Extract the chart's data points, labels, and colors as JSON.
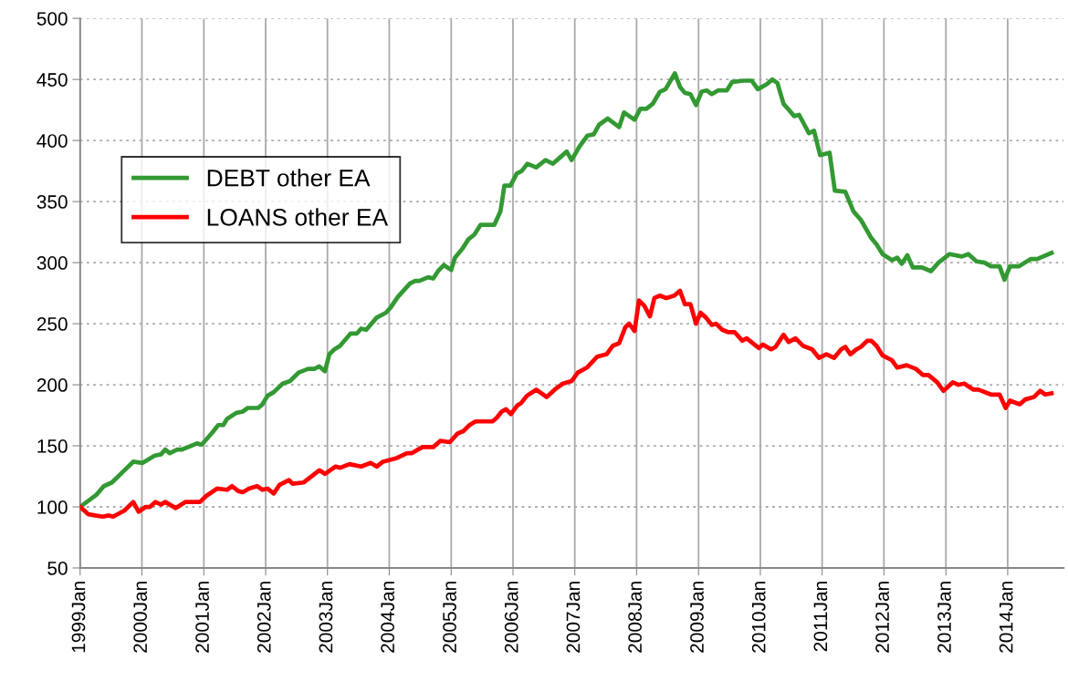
{
  "chart_data": {
    "type": "line",
    "xlim": [
      "1999-01-01",
      "2014-11-28"
    ],
    "xticks": [
      {
        "value": "1999-01",
        "label": "1999Jan"
      },
      {
        "value": "2000-01",
        "label": "2000Jan"
      },
      {
        "value": "2001-01",
        "label": "2001Jan"
      },
      {
        "value": "2002-01",
        "label": "2002Jan"
      },
      {
        "value": "2003-01",
        "label": "2003Jan"
      },
      {
        "value": "2004-01",
        "label": "2004Jan"
      },
      {
        "value": "2005-01",
        "label": "2005Jan"
      },
      {
        "value": "2006-01",
        "label": "2006Jan"
      },
      {
        "value": "2007-01",
        "label": "2007Jan"
      },
      {
        "value": "2008-01",
        "label": "2008Jan"
      },
      {
        "value": "2009-01",
        "label": "2009Jan"
      },
      {
        "value": "2010-01",
        "label": "2010Jan"
      },
      {
        "value": "2011-01",
        "label": "2011Jan"
      },
      {
        "value": "2012-01",
        "label": "2012Jan"
      },
      {
        "value": "2013-01",
        "label": "2013Jan"
      },
      {
        "value": "2014-01",
        "label": "2014Jan"
      }
    ],
    "ylim": [
      50,
      500
    ],
    "yticks": [
      50,
      100,
      150,
      200,
      250,
      300,
      350,
      400,
      450,
      500
    ],
    "grid": true,
    "legend": "top left",
    "marker": "none",
    "line_style": "solid",
    "series": [
      {
        "name": "DEBT other EA",
        "color": "#339933",
        "x": [
          "1999-01-01",
          "1999-04-08",
          "1999-05-21",
          "1999-07-08",
          "1999-09-20",
          "1999-11-11",
          "2000-01-05",
          "2000-03-17",
          "2000-04-23",
          "2000-05-18",
          "2000-06-13",
          "2000-07-28",
          "2000-08-25",
          "2000-10-01",
          "2000-11-21",
          "2000-12-20",
          "2001-02-21",
          "2001-03-27",
          "2001-04-26",
          "2001-05-18",
          "2001-07-12",
          "2001-08-18",
          "2001-09-17",
          "2001-11-18",
          "2001-12-13",
          "2002-01-12",
          "2002-02-18",
          "2002-04-12",
          "2002-05-25",
          "2002-07-15",
          "2002-09-09",
          "2002-10-15",
          "2002-11-14",
          "2002-12-17",
          "2003-01-12",
          "2003-02-11",
          "2003-03-17",
          "2003-05-18",
          "2003-06-24",
          "2003-07-19",
          "2003-08-18",
          "2003-10-19",
          "2003-12-13",
          "2004-01-08",
          "2004-02-21",
          "2004-05-03",
          "2004-06-02",
          "2004-06-27",
          "2004-08-18",
          "2004-09-17",
          "2004-10-15",
          "2004-11-18",
          "2005-01-01",
          "2005-01-23",
          "2005-03-06",
          "2005-04-12",
          "2005-05-18",
          "2005-06-24",
          "2005-09-13",
          "2005-10-19",
          "2005-11-11",
          "2005-12-17",
          "2006-01-23",
          "2006-02-21",
          "2006-03-27",
          "2006-05-18",
          "2006-07-12",
          "2006-08-25",
          "2006-10-05",
          "2006-11-14",
          "2006-12-13",
          "2007-01-28",
          "2007-03-17",
          "2007-04-23",
          "2007-05-25",
          "2007-07-15",
          "2007-09-20",
          "2007-10-19",
          "2007-12-20",
          "2008-01-23",
          "2008-02-28",
          "2008-04-05",
          "2008-05-18",
          "2008-06-20",
          "2008-08-14",
          "2008-09-13",
          "2008-10-12",
          "2008-11-14",
          "2008-12-17",
          "2009-01-19",
          "2009-02-18",
          "2009-03-20",
          "2009-04-26",
          "2009-06-17",
          "2009-07-19",
          "2009-09-24",
          "2009-11-11",
          "2009-12-17",
          "2010-02-07",
          "2010-03-13",
          "2010-04-12",
          "2010-05-18",
          "2010-06-13",
          "2010-07-19",
          "2010-08-18",
          "2010-10-15",
          "2010-11-14",
          "2010-12-20",
          "2011-02-14",
          "2011-03-17",
          "2011-05-18",
          "2011-07-05",
          "2011-08-18",
          "2011-10-19",
          "2011-11-18",
          "2011-12-24",
          "2012-02-18",
          "2012-03-20",
          "2012-04-15",
          "2012-05-18",
          "2012-06-20",
          "2012-08-14",
          "2012-10-05",
          "2012-11-18",
          "2013-01-23",
          "2013-04-05",
          "2013-05-14",
          "2013-07-01",
          "2013-08-18",
          "2013-09-24",
          "2013-11-14",
          "2013-12-13",
          "2014-01-15",
          "2014-03-09",
          "2014-05-18",
          "2014-06-24",
          "2014-09-17"
        ],
        "values": [
          100,
          110,
          117,
          120,
          130,
          137,
          136,
          142,
          143,
          147,
          144,
          147,
          147,
          149,
          152,
          151,
          161,
          167,
          167,
          172,
          177,
          178,
          181,
          181,
          184,
          191,
          194,
          201,
          203,
          210,
          213,
          213,
          215,
          211,
          225,
          229,
          232,
          242,
          242,
          246,
          245,
          255,
          259,
          263,
          272,
          283,
          285,
          285,
          288,
          287,
          293,
          298,
          294,
          304,
          311,
          319,
          323,
          331,
          331,
          342,
          363,
          363,
          373,
          375,
          381,
          378,
          384,
          381,
          386,
          391,
          384,
          395,
          404,
          405,
          413,
          418,
          411,
          423,
          417,
          426,
          426,
          430,
          440,
          442,
          455,
          444,
          439,
          438,
          429,
          440,
          441,
          438,
          441,
          441,
          448,
          449,
          449,
          442,
          446,
          450,
          447,
          430,
          426,
          420,
          421,
          406,
          408,
          388,
          390,
          359,
          358,
          342,
          335,
          320,
          315,
          307,
          302,
          304,
          299,
          306,
          296,
          296,
          293,
          300,
          307,
          305,
          307,
          301,
          300,
          297,
          297,
          286,
          297,
          297,
          303,
          303,
          308
        ]
      },
      {
        "name": "LOANS other EA",
        "color": "#ff0000",
        "x": [
          "1999-01-01",
          "1999-02-18",
          "1999-05-14",
          "1999-06-20",
          "1999-07-15",
          "1999-09-20",
          "1999-11-11",
          "1999-12-13",
          "2000-01-23",
          "2000-02-18",
          "2000-03-20",
          "2000-04-23",
          "2000-05-18",
          "2000-07-19",
          "2000-09-13",
          "2000-12-09",
          "2001-01-15",
          "2001-03-20",
          "2001-05-18",
          "2001-06-17",
          "2001-07-23",
          "2001-08-18",
          "2001-09-24",
          "2001-11-11",
          "2001-12-13",
          "2002-01-12",
          "2002-02-18",
          "2002-03-24",
          "2002-05-18",
          "2002-06-09",
          "2002-08-14",
          "2002-11-14",
          "2002-12-17",
          "2003-02-18",
          "2003-03-17",
          "2003-05-11",
          "2003-07-19",
          "2003-09-13",
          "2003-10-19",
          "2003-11-25",
          "2004-02-14",
          "2004-04-15",
          "2004-05-14",
          "2004-07-15",
          "2004-09-17",
          "2004-10-28",
          "2004-12-24",
          "2005-02-07",
          "2005-03-13",
          "2005-04-19",
          "2005-05-25",
          "2005-09-02",
          "2005-09-27",
          "2005-10-26",
          "2005-11-21",
          "2005-12-20",
          "2006-01-26",
          "2006-02-18",
          "2006-03-24",
          "2006-05-18",
          "2006-07-19",
          "2006-09-13",
          "2006-10-23",
          "2006-12-13",
          "2007-01-19",
          "2007-03-13",
          "2007-05-14",
          "2007-07-08",
          "2007-08-14",
          "2007-09-20",
          "2007-10-26",
          "2007-11-18",
          "2007-12-20",
          "2008-01-15",
          "2008-02-14",
          "2008-03-20",
          "2008-04-15",
          "2008-05-18",
          "2008-06-24",
          "2008-08-11",
          "2008-09-13",
          "2008-10-12",
          "2008-11-14",
          "2008-12-17",
          "2009-01-12",
          "2009-02-14",
          "2009-03-20",
          "2009-04-15",
          "2009-05-21",
          "2009-06-27",
          "2009-08-03",
          "2009-09-17",
          "2009-10-12",
          "2009-12-24",
          "2010-01-15",
          "2010-03-06",
          "2010-04-01",
          "2010-05-18",
          "2010-06-17",
          "2010-07-28",
          "2010-09-09",
          "2010-11-03",
          "2010-12-13",
          "2011-01-26",
          "2011-03-13",
          "2011-04-23",
          "2011-05-18",
          "2011-06-17",
          "2011-07-23",
          "2011-08-18",
          "2011-09-24",
          "2011-10-19",
          "2011-11-18",
          "2011-12-24",
          "2012-02-18",
          "2012-03-20",
          "2012-05-14",
          "2012-07-08",
          "2012-08-18",
          "2012-09-20",
          "2012-11-11",
          "2012-12-17",
          "2013-02-11",
          "2013-03-17",
          "2013-04-19",
          "2013-06-13",
          "2013-07-12",
          "2013-09-24",
          "2013-11-14",
          "2013-12-20",
          "2014-01-15",
          "2014-03-13",
          "2014-04-15",
          "2014-06-06",
          "2014-07-12",
          "2014-08-11",
          "2014-09-17"
        ],
        "values": [
          100,
          94,
          92,
          93,
          92,
          97,
          104,
          96,
          100,
          100,
          104,
          102,
          104,
          99,
          104,
          104,
          109,
          115,
          114,
          117,
          113,
          112,
          115,
          117,
          114,
          115,
          111,
          118,
          122,
          119,
          120,
          130,
          127,
          133,
          132,
          135,
          133,
          136,
          133,
          137,
          140,
          144,
          144,
          149,
          149,
          154,
          153,
          160,
          162,
          167,
          170,
          170,
          173,
          178,
          180,
          176,
          183,
          185,
          191,
          196,
          190,
          197,
          201,
          203,
          210,
          214,
          223,
          225,
          232,
          234,
          247,
          250,
          244,
          269,
          265,
          256,
          271,
          273,
          271,
          273,
          277,
          266,
          266,
          250,
          259,
          255,
          249,
          250,
          245,
          243,
          243,
          236,
          238,
          230,
          233,
          229,
          231,
          241,
          235,
          238,
          232,
          229,
          222,
          225,
          222,
          229,
          231,
          225,
          229,
          231,
          236,
          236,
          232,
          224,
          220,
          214,
          216,
          213,
          208,
          208,
          202,
          195,
          202,
          200,
          201,
          196,
          196,
          192,
          192,
          181,
          187,
          184,
          188,
          190,
          195,
          192,
          193
        ]
      }
    ]
  }
}
